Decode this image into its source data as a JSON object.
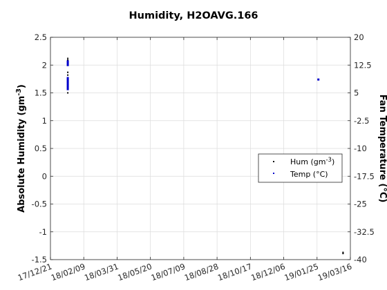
{
  "chart_data": {
    "type": "scatter",
    "title": "Humidity, H2OAVG.166",
    "ylabel_left": "Absolute Humidity (gm",
    "ylabel_left_sup": "-3",
    "ylabel_left_end": ")",
    "ylabel_right": "Fan Temperature (°C)",
    "x_ticks": [
      "17/12/21",
      "18/02/09",
      "18/03/31",
      "18/05/20",
      "18/07/09",
      "18/08/28",
      "18/10/17",
      "18/12/06",
      "19/01/25",
      "19/03/16"
    ],
    "x_range": [
      "2017-12-21",
      "2019-03-16"
    ],
    "ylim_left": [
      -1.5,
      2.5
    ],
    "ylim_right": [
      -40,
      20
    ],
    "yticks_left": [
      -1.5,
      -1,
      -0.5,
      0,
      0.5,
      1,
      1.5,
      2,
      2.5
    ],
    "yticks_right": [
      -40,
      -32.5,
      -25,
      -17.5,
      -10,
      -2.5,
      5,
      12.5,
      20
    ],
    "grid": true,
    "legend_position": "right",
    "series": [
      {
        "name": "Hum (gm",
        "name_sup": "-3",
        "name_end": ")",
        "axis": "left",
        "color": "#000000",
        "points": [
          [
            "2018-01-16",
            1.5
          ],
          [
            "2018-01-16",
            1.63
          ],
          [
            "2018-01-16",
            1.68
          ],
          [
            "2018-01-16",
            1.72
          ],
          [
            "2018-01-16",
            1.77
          ],
          [
            "2018-01-16",
            1.82
          ],
          [
            "2018-01-16",
            1.87
          ],
          [
            "2018-01-16",
            2.05
          ],
          [
            "2018-01-16",
            2.09
          ],
          [
            "2018-01-16",
            2.12
          ],
          [
            "2019-03-05",
            -1.37
          ],
          [
            "2019-03-05",
            -1.39
          ]
        ]
      },
      {
        "name": "Temp (°C)",
        "axis": "right",
        "color": "#0000cc",
        "points": [
          [
            "2018-01-16",
            6.0
          ],
          [
            "2018-01-16",
            6.5
          ],
          [
            "2018-01-16",
            7.0
          ],
          [
            "2018-01-16",
            7.5
          ],
          [
            "2018-01-16",
            8.0
          ],
          [
            "2018-01-16",
            8.5
          ],
          [
            "2018-01-16",
            9.0
          ],
          [
            "2018-01-16",
            12.5
          ],
          [
            "2018-01-16",
            13.0
          ],
          [
            "2018-01-16",
            13.5
          ],
          [
            "2019-01-27",
            8.6
          ]
        ]
      }
    ]
  }
}
